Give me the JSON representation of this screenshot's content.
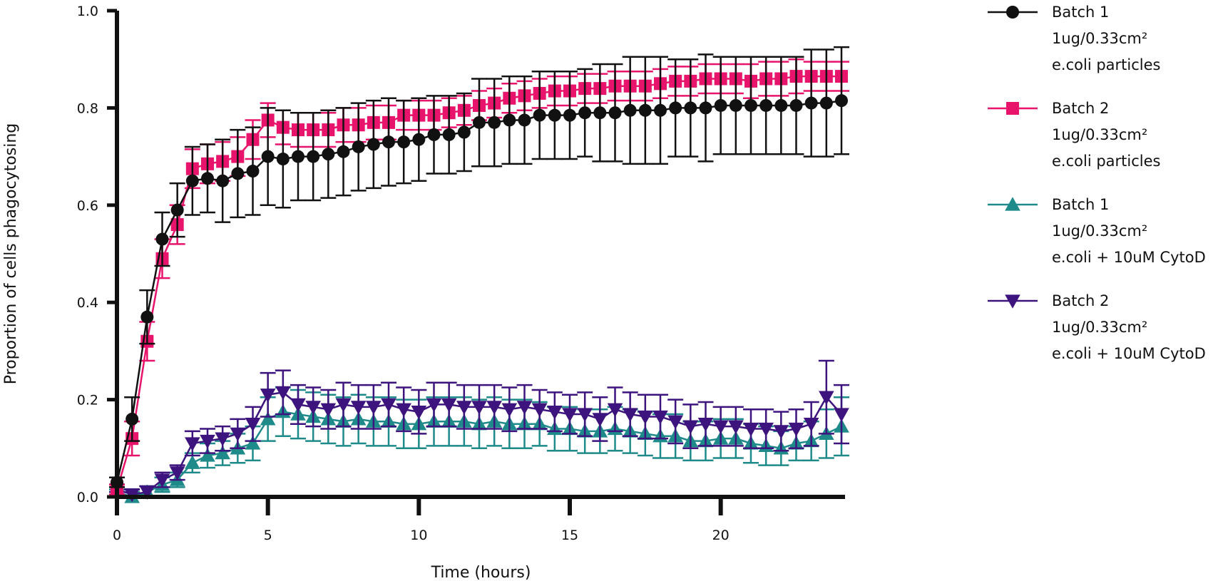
{
  "chart_data": {
    "type": "line",
    "title": "",
    "xlabel": "Time (hours)",
    "ylabel": "Proportion of cells phagocytosing",
    "xlim": [
      0,
      24
    ],
    "ylim": [
      0,
      1.0
    ],
    "x_ticks": [
      0,
      5,
      10,
      15,
      20
    ],
    "y_ticks": [
      0.0,
      0.2,
      0.4,
      0.6,
      0.8,
      1.0
    ],
    "y_tick_labels": [
      "0.0",
      "0.2",
      "0.4",
      "0.6",
      "0.8",
      "1.0"
    ],
    "x_tick_labels": [
      "0",
      "5",
      "10",
      "15",
      "20"
    ],
    "grid": false,
    "legend_position": "right",
    "x": [
      0,
      0.5,
      1,
      1.5,
      2,
      2.5,
      3,
      3.5,
      4,
      4.5,
      5,
      5.5,
      6,
      6.5,
      7,
      7.5,
      8,
      8.5,
      9,
      9.5,
      10,
      10.5,
      11,
      11.5,
      12,
      12.5,
      13,
      13.5,
      14,
      14.5,
      15,
      15.5,
      16,
      16.5,
      17,
      17.5,
      18,
      18.5,
      19,
      19.5,
      20,
      20.5,
      21,
      21.5,
      22,
      22.5,
      23,
      23.5,
      24
    ],
    "series": [
      {
        "name": "Batch 1",
        "legend_lines": [
          "Batch 1",
          "1ug/0.33cm²",
          "e.coli particles"
        ],
        "color": "#111111",
        "marker": "circle",
        "values": [
          0.03,
          0.16,
          0.37,
          0.53,
          0.59,
          0.65,
          0.655,
          0.65,
          0.665,
          0.67,
          0.7,
          0.695,
          0.7,
          0.7,
          0.705,
          0.71,
          0.72,
          0.725,
          0.73,
          0.73,
          0.735,
          0.745,
          0.745,
          0.75,
          0.77,
          0.77,
          0.775,
          0.775,
          0.785,
          0.785,
          0.785,
          0.79,
          0.79,
          0.79,
          0.795,
          0.795,
          0.795,
          0.8,
          0.8,
          0.8,
          0.805,
          0.805,
          0.805,
          0.805,
          0.805,
          0.805,
          0.81,
          0.81,
          0.815
        ],
        "errors": [
          0.01,
          0.045,
          0.055,
          0.055,
          0.055,
          0.07,
          0.07,
          0.085,
          0.09,
          0.09,
          0.1,
          0.1,
          0.09,
          0.09,
          0.09,
          0.09,
          0.09,
          0.09,
          0.09,
          0.085,
          0.085,
          0.08,
          0.08,
          0.08,
          0.09,
          0.09,
          0.09,
          0.09,
          0.09,
          0.09,
          0.09,
          0.09,
          0.1,
          0.1,
          0.11,
          0.11,
          0.11,
          0.1,
          0.1,
          0.11,
          0.1,
          0.1,
          0.1,
          0.1,
          0.1,
          0.1,
          0.11,
          0.11,
          0.11
        ]
      },
      {
        "name": "Batch 2",
        "legend_lines": [
          "Batch 2",
          "1ug/0.33cm²",
          "e.coli particles"
        ],
        "color": "#e8146b",
        "marker": "square",
        "values": [
          0.015,
          0.12,
          0.32,
          0.49,
          0.56,
          0.675,
          0.685,
          0.69,
          0.7,
          0.735,
          0.775,
          0.76,
          0.755,
          0.755,
          0.755,
          0.765,
          0.765,
          0.77,
          0.77,
          0.785,
          0.785,
          0.785,
          0.79,
          0.795,
          0.805,
          0.81,
          0.82,
          0.825,
          0.83,
          0.835,
          0.835,
          0.84,
          0.84,
          0.845,
          0.845,
          0.845,
          0.85,
          0.855,
          0.855,
          0.86,
          0.86,
          0.86,
          0.855,
          0.86,
          0.86,
          0.865,
          0.865,
          0.865,
          0.865
        ],
        "errors": [
          0.01,
          0.035,
          0.04,
          0.04,
          0.04,
          0.04,
          0.04,
          0.04,
          0.04,
          0.04,
          0.035,
          0.035,
          0.035,
          0.035,
          0.035,
          0.035,
          0.035,
          0.035,
          0.035,
          0.03,
          0.03,
          0.03,
          0.03,
          0.03,
          0.03,
          0.03,
          0.03,
          0.03,
          0.03,
          0.03,
          0.03,
          0.03,
          0.03,
          0.03,
          0.03,
          0.03,
          0.03,
          0.03,
          0.03,
          0.03,
          0.03,
          0.03,
          0.035,
          0.035,
          0.035,
          0.035,
          0.03,
          0.03,
          0.03
        ]
      },
      {
        "name": "Batch 1",
        "legend_lines": [
          "Batch 1",
          "1ug/0.33cm²",
          "e.coli + 10uM CytoD"
        ],
        "color": "#1f8a8a",
        "marker": "triangle-up",
        "values": [
          0.01,
          0.0,
          0.01,
          0.025,
          0.035,
          0.07,
          0.085,
          0.09,
          0.1,
          0.11,
          0.16,
          0.175,
          0.17,
          0.165,
          0.16,
          0.155,
          0.16,
          0.155,
          0.155,
          0.15,
          0.15,
          0.155,
          0.155,
          0.155,
          0.15,
          0.155,
          0.15,
          0.15,
          0.15,
          0.14,
          0.14,
          0.135,
          0.135,
          0.14,
          0.135,
          0.13,
          0.125,
          0.125,
          0.115,
          0.115,
          0.12,
          0.12,
          0.11,
          0.105,
          0.1,
          0.11,
          0.115,
          0.13,
          0.145
        ],
        "errors": [
          0.005,
          0.01,
          0.012,
          0.015,
          0.015,
          0.02,
          0.025,
          0.025,
          0.03,
          0.035,
          0.045,
          0.05,
          0.05,
          0.05,
          0.05,
          0.05,
          0.05,
          0.05,
          0.05,
          0.05,
          0.05,
          0.05,
          0.05,
          0.05,
          0.05,
          0.05,
          0.05,
          0.05,
          0.045,
          0.045,
          0.045,
          0.045,
          0.045,
          0.045,
          0.045,
          0.045,
          0.045,
          0.045,
          0.04,
          0.04,
          0.04,
          0.04,
          0.04,
          0.04,
          0.035,
          0.035,
          0.04,
          0.05,
          0.06
        ]
      },
      {
        "name": "Batch 2",
        "legend_lines": [
          "Batch 2",
          "1ug/0.33cm²",
          "e.coli + 10uM CytoD"
        ],
        "color": "#3d137e",
        "marker": "triangle-down",
        "values": [
          0.015,
          0.005,
          0.01,
          0.035,
          0.05,
          0.11,
          0.115,
          0.12,
          0.13,
          0.15,
          0.21,
          0.215,
          0.19,
          0.185,
          0.18,
          0.19,
          0.185,
          0.185,
          0.19,
          0.18,
          0.175,
          0.19,
          0.19,
          0.185,
          0.185,
          0.185,
          0.18,
          0.185,
          0.18,
          0.175,
          0.17,
          0.17,
          0.16,
          0.18,
          0.17,
          0.165,
          0.165,
          0.155,
          0.145,
          0.15,
          0.145,
          0.145,
          0.14,
          0.14,
          0.135,
          0.14,
          0.15,
          0.205,
          0.17
        ],
        "errors": [
          0.005,
          0.01,
          0.012,
          0.015,
          0.015,
          0.025,
          0.025,
          0.025,
          0.03,
          0.035,
          0.045,
          0.045,
          0.04,
          0.04,
          0.04,
          0.045,
          0.045,
          0.045,
          0.045,
          0.045,
          0.045,
          0.045,
          0.045,
          0.045,
          0.045,
          0.045,
          0.045,
          0.045,
          0.04,
          0.04,
          0.04,
          0.045,
          0.045,
          0.045,
          0.045,
          0.045,
          0.045,
          0.045,
          0.045,
          0.045,
          0.04,
          0.04,
          0.04,
          0.04,
          0.04,
          0.04,
          0.045,
          0.075,
          0.06
        ]
      }
    ]
  }
}
